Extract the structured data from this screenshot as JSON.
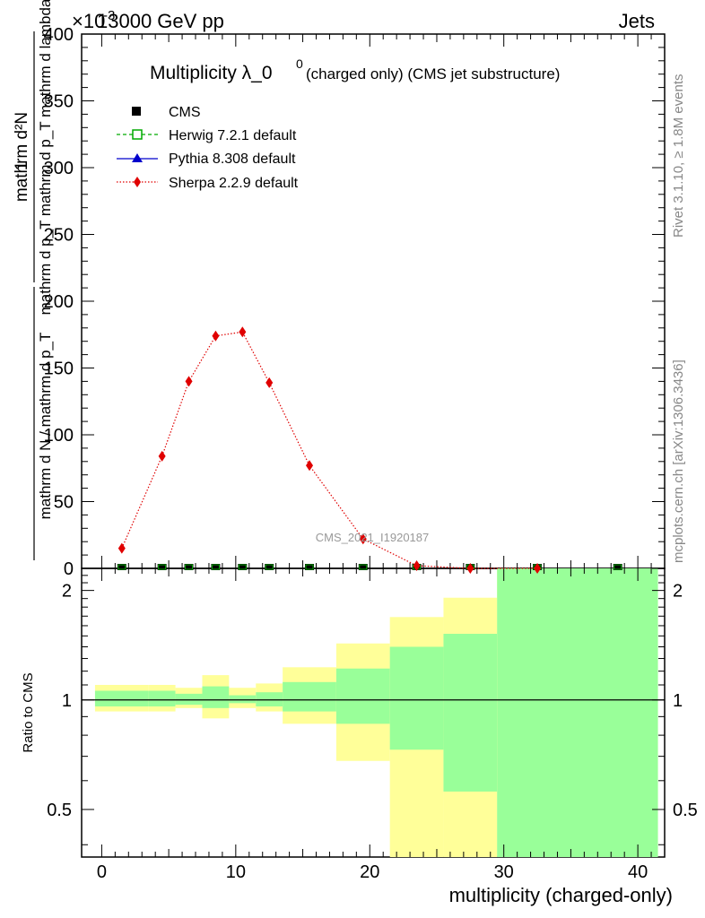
{
  "header": {
    "left": "13000 GeV pp",
    "right": "Jets",
    "exponent": "×10",
    "exponent_power": "-3"
  },
  "side_labels": {
    "rivet": "Rivet 3.1.10, ≥ 1.8M events",
    "mcplots": "mcplots.cern.ch [arXiv:1306.3436]"
  },
  "chart_data": {
    "type": "line",
    "title_main": "Multiplicity λ_0",
    "title_sup": "0",
    "title_note": "(charged only) (CMS jet substructure)",
    "watermark": "CMS_2021_I1920187",
    "ylabel_main": {
      "numerator": "mathrm d²N",
      "denominator": "mathrm d p_T mathrm d p_T mathrm d lambda",
      "prefix_numerator": "1",
      "prefix_denominator": "mathrm d N / mathrm d p_T"
    },
    "ylabel_ratio": "Ratio to CMS",
    "xlabel": "multiplicity (charged-only)",
    "xlim": [
      -1.5,
      42
    ],
    "ylim_main": [
      0,
      400
    ],
    "ylim_ratio": [
      0.37,
      2.3
    ],
    "x_ticks": [
      "0",
      "10",
      "20",
      "30",
      "40"
    ],
    "y_ticks_main": [
      "0",
      "50",
      "100",
      "150",
      "200",
      "250",
      "300",
      "350",
      "400"
    ],
    "y_ticks_ratio": [
      "0.5",
      "1",
      "2"
    ],
    "legend": [
      {
        "label": "CMS",
        "color": "#000000",
        "marker": "square"
      },
      {
        "label": "Herwig 7.2.1 default",
        "color": "#00aa00",
        "marker": "open-square"
      },
      {
        "label": "Pythia 8.308 default",
        "color": "#0000cc",
        "marker": "triangle"
      },
      {
        "label": "Sherpa 2.2.9 default",
        "color": "#e00000",
        "marker": "diamond"
      }
    ],
    "cms_points_x": [
      1.5,
      4.5,
      6.5,
      8.5,
      10.5,
      12.5,
      15.5,
      19.5,
      23.5,
      27.5,
      32.5,
      38.5
    ],
    "sherpa": {
      "x": [
        1.5,
        4.5,
        6.5,
        8.5,
        10.5,
        12.5,
        15.5,
        19.5,
        23.5,
        27.5,
        32.5
      ],
      "y": [
        15,
        84,
        140,
        174,
        177,
        139,
        77,
        22,
        2,
        0,
        0
      ]
    },
    "ratio_bands": [
      {
        "x0": -0.5,
        "x1": 3.5,
        "y_lo": 0.93,
        "y_hi": 1.1,
        "g_lo": 0.96,
        "g_hi": 1.06
      },
      {
        "x0": 3.5,
        "x1": 5.5,
        "y_lo": 0.93,
        "y_hi": 1.1,
        "g_lo": 0.96,
        "g_hi": 1.06
      },
      {
        "x0": 5.5,
        "x1": 7.5,
        "y_lo": 0.95,
        "y_hi": 1.08,
        "g_lo": 0.97,
        "g_hi": 1.04
      },
      {
        "x0": 7.5,
        "x1": 9.5,
        "y_lo": 0.89,
        "y_hi": 1.17,
        "g_lo": 0.95,
        "g_hi": 1.09
      },
      {
        "x0": 9.5,
        "x1": 11.5,
        "y_lo": 0.95,
        "y_hi": 1.08,
        "g_lo": 0.98,
        "g_hi": 1.03
      },
      {
        "x0": 11.5,
        "x1": 13.5,
        "y_lo": 0.93,
        "y_hi": 1.11,
        "g_lo": 0.96,
        "g_hi": 1.05
      },
      {
        "x0": 13.5,
        "x1": 17.5,
        "y_lo": 0.86,
        "y_hi": 1.23,
        "g_lo": 0.93,
        "g_hi": 1.12
      },
      {
        "x0": 17.5,
        "x1": 21.5,
        "y_lo": 0.68,
        "y_hi": 1.43,
        "g_lo": 0.86,
        "g_hi": 1.22
      },
      {
        "x0": 21.5,
        "x1": 25.5,
        "y_lo": 0.37,
        "y_hi": 1.69,
        "g_lo": 0.73,
        "g_hi": 1.4
      },
      {
        "x0": 25.5,
        "x1": 29.5,
        "y_lo": 0.37,
        "y_hi": 1.91,
        "g_lo": 0.56,
        "g_hi": 1.52
      },
      {
        "x0": 29.5,
        "x1": 41.5,
        "y_lo": 0.37,
        "y_hi": 2.3,
        "g_lo": 0.37,
        "g_hi": 2.3
      }
    ],
    "colors": {
      "yellow": "#ffff99",
      "green": "#99ff99",
      "sherpa": "#e00000",
      "herwig": "#00aa00",
      "pythia": "#0000cc"
    }
  }
}
